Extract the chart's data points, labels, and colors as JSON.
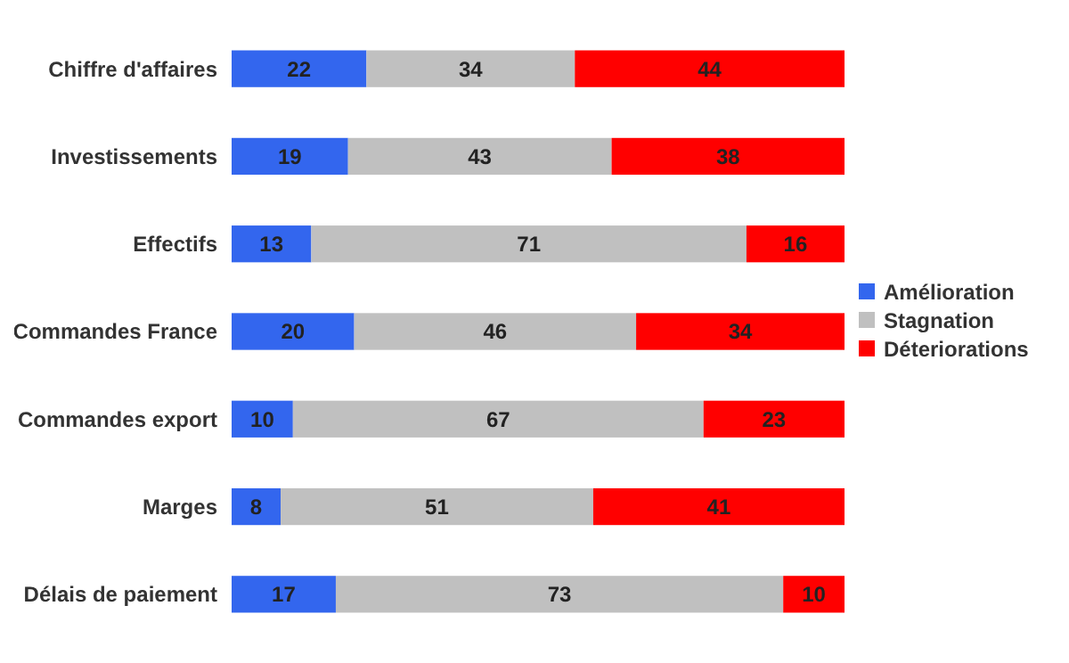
{
  "chart_data": {
    "type": "bar",
    "orientation": "horizontal",
    "stacked": true,
    "categories": [
      "Chiffre d'affaires",
      "Investissements",
      "Effectifs",
      "Commandes France",
      "Commandes export",
      "Marges",
      "Délais de paiement"
    ],
    "series": [
      {
        "name": "Amélioration",
        "color": "#3366ee",
        "values": [
          22,
          19,
          13,
          20,
          10,
          8,
          17
        ]
      },
      {
        "name": "Stagnation",
        "color": "#c0c0c0",
        "values": [
          34,
          43,
          71,
          46,
          67,
          51,
          73
        ]
      },
      {
        "name": "Déteriorations",
        "color": "#ff0000",
        "values": [
          44,
          38,
          16,
          34,
          23,
          41,
          10
        ]
      }
    ],
    "xlim": [
      0,
      100
    ],
    "data_labels": true,
    "legend": "right",
    "tick_labels": "y"
  }
}
